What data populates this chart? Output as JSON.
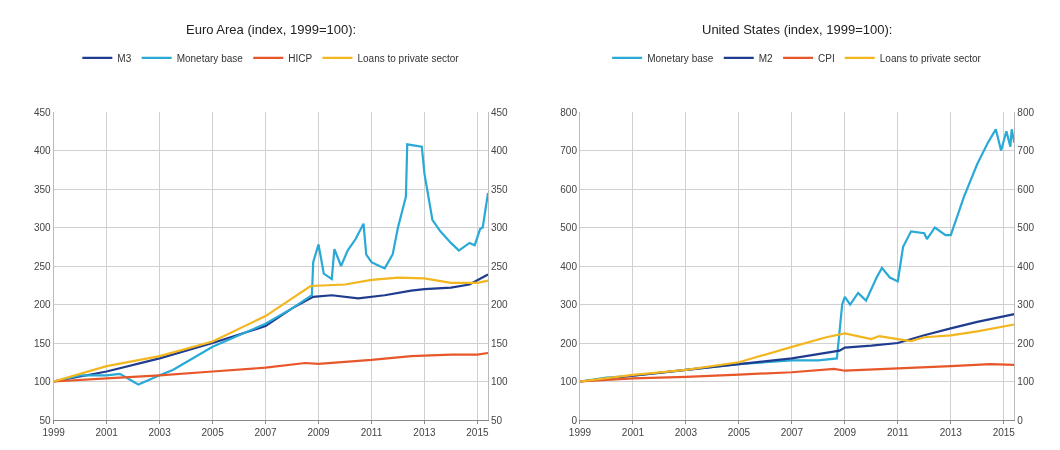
{
  "chart_data": [
    {
      "type": "line",
      "title": "Euro Area (index, 1999=100):",
      "legend": "top",
      "grid": true,
      "xlim": [
        1999,
        2015.4
      ],
      "xticks": [
        1999,
        2001,
        2003,
        2005,
        2007,
        2009,
        2011,
        2013,
        2015
      ],
      "ylim": [
        50,
        450
      ],
      "yticks": [
        50,
        100,
        150,
        200,
        250,
        300,
        350,
        400,
        450
      ],
      "y2lim": [
        50,
        450
      ],
      "y2ticks": [
        50,
        100,
        150,
        200,
        250,
        300,
        350,
        400,
        450
      ],
      "series": [
        {
          "name": "M3",
          "color": "#1f3c8f",
          "x": [
            1999,
            2001,
            2003,
            2005,
            2007,
            2008,
            2008.8,
            2009.5,
            2010.5,
            2011.5,
            2012.5,
            2013,
            2014,
            2014.7,
            2015.4
          ],
          "values": [
            100,
            113,
            130,
            150,
            172,
            195,
            210,
            212,
            208,
            212,
            218,
            220,
            222,
            226,
            239
          ]
        },
        {
          "name": "Monetary base",
          "color": "#29a9d6",
          "x": [
            1999,
            2000,
            2001,
            2001.5,
            2002,
            2002.2,
            2003,
            2003.5,
            2004,
            2005,
            2006,
            2007,
            2008,
            2008.75,
            2008.8,
            2009,
            2009.2,
            2009.5,
            2009.6,
            2009.85,
            2010.1,
            2010.4,
            2010.7,
            2010.8,
            2011,
            2011.3,
            2011.5,
            2011.8,
            2012,
            2012.3,
            2012.35,
            2012.9,
            2013,
            2013.3,
            2013.6,
            2014,
            2014.3,
            2014.7,
            2014.9,
            2015.1,
            2015.2,
            2015.4
          ],
          "values": [
            100,
            108,
            108,
            110,
            100,
            96,
            108,
            115,
            125,
            145,
            160,
            175,
            195,
            212,
            255,
            278,
            240,
            233,
            272,
            250,
            270,
            285,
            305,
            265,
            255,
            250,
            247,
            265,
            300,
            340,
            408,
            405,
            370,
            310,
            295,
            280,
            270,
            280,
            277,
            298,
            300,
            345
          ]
        },
        {
          "name": "HICP",
          "color": "#e8572a",
          "x": [
            1999,
            2001,
            2003,
            2005,
            2007,
            2008.5,
            2009,
            2011,
            2012.5,
            2014,
            2015,
            2015.4
          ],
          "values": [
            100,
            104,
            108,
            113,
            118,
            124,
            123,
            128,
            133,
            135,
            135,
            137
          ]
        },
        {
          "name": "Loans to private sector",
          "color": "#f2b61f",
          "x": [
            1999,
            2001,
            2003,
            2005,
            2007,
            2008.7,
            2010,
            2011,
            2012,
            2013,
            2014,
            2015,
            2015.4
          ],
          "values": [
            100,
            120,
            133,
            152,
            185,
            224,
            226,
            232,
            235,
            234,
            228,
            228,
            231
          ]
        }
      ]
    },
    {
      "type": "line",
      "title": "United States (index, 1999=100):",
      "legend": "top",
      "grid": true,
      "xlim": [
        1999,
        2015.4
      ],
      "xticks": [
        1999,
        2001,
        2003,
        2005,
        2007,
        2009,
        2011,
        2013,
        2015
      ],
      "ylim": [
        0,
        800
      ],
      "yticks": [
        0,
        100,
        200,
        300,
        400,
        500,
        600,
        700,
        800
      ],
      "y2lim": [
        0,
        800
      ],
      "y2ticks": [
        0,
        100,
        200,
        300,
        400,
        500,
        600,
        700,
        800
      ],
      "series": [
        {
          "name": "Monetary base",
          "color": "#29a9d6",
          "x": [
            1999,
            2000,
            2001,
            2003,
            2005,
            2007,
            2008,
            2008.7,
            2008.9,
            2009,
            2009.2,
            2009.5,
            2009.8,
            2010.2,
            2010.4,
            2010.7,
            2011,
            2011.2,
            2011.5,
            2012,
            2012.1,
            2012.4,
            2012.8,
            2013,
            2013.5,
            2014,
            2014.4,
            2014.7,
            2014.9,
            2015.1,
            2015.25,
            2015.3,
            2015.4
          ],
          "values": [
            100,
            110,
            115,
            130,
            145,
            155,
            155,
            160,
            300,
            320,
            300,
            330,
            310,
            370,
            395,
            370,
            360,
            450,
            490,
            485,
            470,
            500,
            480,
            480,
            580,
            665,
            720,
            755,
            700,
            750,
            710,
            755,
            720
          ]
        },
        {
          "name": "M2",
          "color": "#1f3c8f",
          "x": [
            1999,
            2001,
            2003,
            2005,
            2007,
            2008.8,
            2009,
            2010,
            2011,
            2012,
            2013,
            2014,
            2015.4
          ],
          "values": [
            100,
            115,
            130,
            145,
            160,
            180,
            188,
            193,
            200,
            220,
            238,
            255,
            275
          ]
        },
        {
          "name": "CPI",
          "color": "#e8572a",
          "x": [
            1999,
            2001,
            2003,
            2005,
            2007,
            2008.6,
            2009,
            2011,
            2013,
            2014.5,
            2015.4
          ],
          "values": [
            100,
            108,
            112,
            118,
            124,
            133,
            128,
            134,
            140,
            145,
            143
          ]
        },
        {
          "name": "Loans to private sector",
          "color": "#f2b61f",
          "x": [
            1999,
            2001,
            2003,
            2005,
            2007,
            2008.3,
            2009,
            2010,
            2010.3,
            2011,
            2011.5,
            2012,
            2013,
            2014,
            2015.4
          ],
          "values": [
            100,
            117,
            130,
            150,
            190,
            215,
            225,
            210,
            218,
            210,
            205,
            215,
            220,
            230,
            248
          ]
        }
      ]
    }
  ]
}
